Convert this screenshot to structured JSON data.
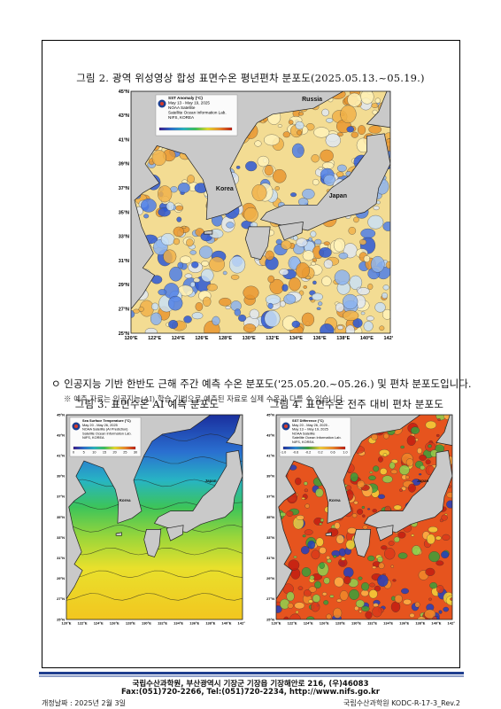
{
  "figure2": {
    "caption": "그림 2. 광역 위성영상 합성 표면수온 평년편차 분포도(2025.05.13.~05.19.)",
    "legend": [
      "SST Anomaly (°C)",
      "May 13 - May 19, 2025",
      "NOAA Satellite",
      "Satellite Ocean Information Lab.",
      "NIFS, KOREA"
    ],
    "places": {
      "russia": "Russia",
      "korea": "Korea",
      "japan": "Japan"
    },
    "lat_ticks": [
      "45°N",
      "43°N",
      "41°N",
      "39°N",
      "37°N",
      "35°N",
      "33°N",
      "31°N",
      "29°N",
      "27°N",
      "25°N"
    ],
    "lon_ticks": [
      "120°E",
      "122°E",
      "124°E",
      "126°E",
      "128°E",
      "130°E",
      "132°E",
      "134°E",
      "136°E",
      "138°E",
      "140°E",
      "142°E"
    ]
  },
  "intro": {
    "bullet": "ㅇ 인공지능 기반 한반도 근해 주간 예측 수온 분포도('25.05.20.~05.26.) 및 편차 분포도입니다.",
    "note": "※ 예측 자료는 인공지능(AI) 학습 기법으로 예측된 자료로 실제 수온과 다를 수 있습니다."
  },
  "figure3": {
    "caption": "그림 3. 표면수온 AI 예측 분포도",
    "legend": [
      "Sea Surface Temperature (°C)",
      "May 20 - May 26, 2025",
      "NOAA Satellite (AI Prediction)",
      "Satellite Ocean Information Lab.",
      "NIFS, KOREA"
    ],
    "colorbar": [
      "0",
      "5",
      "10",
      "15",
      "20",
      "25",
      "30"
    ],
    "places": {
      "korea": "Korea",
      "japan": "Japan"
    },
    "lat_ticks": [
      "45°N",
      "43°N",
      "41°N",
      "39°N",
      "37°N",
      "35°N",
      "33°N",
      "31°N",
      "29°N",
      "27°N",
      "25°N"
    ],
    "lon_ticks": [
      "120°E",
      "122°E",
      "124°E",
      "126°E",
      "128°E",
      "130°E",
      "132°E",
      "134°E",
      "136°E",
      "138°E",
      "140°E",
      "142°E"
    ]
  },
  "figure4": {
    "caption": "그림 4. 표면수온 전주 대비 편차 분포도",
    "legend": [
      "SST Difference (°C)",
      "May 20 - May 26, 2025 -",
      "May 13 ~ May 19, 2025",
      "NOAA Satellite",
      "Satellite Ocean Information Lab.",
      "NIFS, KOREA"
    ],
    "colorbar": [
      "-1.0",
      "-0.6",
      "-0.2",
      "0.2",
      "0.6",
      "1.0"
    ],
    "places": {
      "korea": "Korea",
      "japan": "Japan"
    },
    "lat_ticks": [
      "45°N",
      "43°N",
      "41°N",
      "39°N",
      "37°N",
      "35°N",
      "33°N",
      "31°N",
      "29°N",
      "27°N",
      "25°N"
    ],
    "lon_ticks": [
      "120°E",
      "122°E",
      "124°E",
      "126°E",
      "128°E",
      "130°E",
      "132°E",
      "134°E",
      "136°E",
      "138°E",
      "140°E",
      "142°E"
    ]
  },
  "footer": {
    "address": "국립수산과학원, 부산광역시 기장군 기장읍 기장해안로 216, (우)46083",
    "contact": "Fax:(051)720-2266, Tel:(051)720-2234, http://www.nifs.go.kr",
    "revised": "개정날짜 : 2025년 2월 3일",
    "doc_id": "국립수산과학원 KODC-R-17-3_Rev.2"
  }
}
